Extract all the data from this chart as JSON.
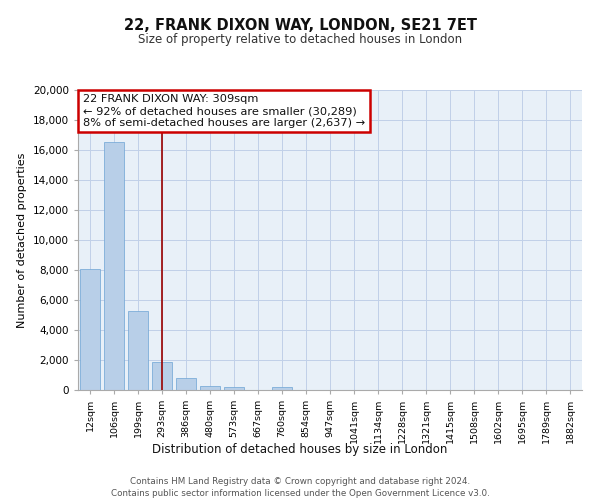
{
  "title": "22, FRANK DIXON WAY, LONDON, SE21 7ET",
  "subtitle": "Size of property relative to detached houses in London",
  "xlabel": "Distribution of detached houses by size in London",
  "ylabel": "Number of detached properties",
  "bar_labels": [
    "12sqm",
    "106sqm",
    "199sqm",
    "293sqm",
    "386sqm",
    "480sqm",
    "573sqm",
    "667sqm",
    "760sqm",
    "854sqm",
    "947sqm",
    "1041sqm",
    "1134sqm",
    "1228sqm",
    "1321sqm",
    "1415sqm",
    "1508sqm",
    "1602sqm",
    "1695sqm",
    "1789sqm",
    "1882sqm"
  ],
  "bar_values": [
    8100,
    16500,
    5300,
    1850,
    800,
    300,
    200,
    0,
    200,
    0,
    0,
    0,
    0,
    0,
    0,
    0,
    0,
    0,
    0,
    0,
    0
  ],
  "bar_color": "#b8cfe8",
  "bar_edge_color": "#6da4d4",
  "vline_x_index": 3.0,
  "vline_color": "#990000",
  "ylim": [
    0,
    20000
  ],
  "yticks": [
    0,
    2000,
    4000,
    6000,
    8000,
    10000,
    12000,
    14000,
    16000,
    18000,
    20000
  ],
  "annotation_title": "22 FRANK DIXON WAY: 309sqm",
  "annotation_line1": "← 92% of detached houses are smaller (30,289)",
  "annotation_line2": "8% of semi-detached houses are larger (2,637) →",
  "annotation_box_color": "#ffffff",
  "annotation_box_edge": "#cc0000",
  "plot_bg_color": "#e8f0f8",
  "footer1": "Contains HM Land Registry data © Crown copyright and database right 2024.",
  "footer2": "Contains public sector information licensed under the Open Government Licence v3.0."
}
